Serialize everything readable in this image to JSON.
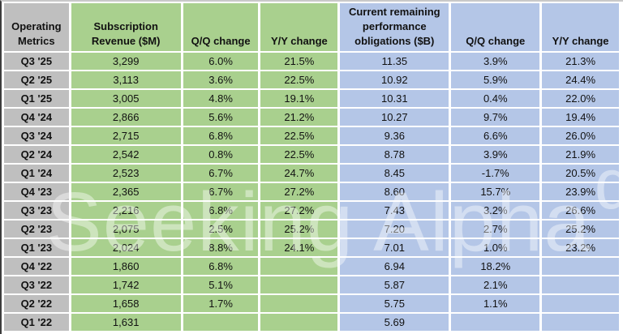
{
  "watermark": {
    "text": "Seeking Alpha",
    "alpha": "α"
  },
  "colors": {
    "gray": "#BFBFBF",
    "green": "#A9D08E",
    "blue": "#B4C6E7",
    "grid_white": "#FFFFFF",
    "text": "#111111"
  },
  "table": {
    "columns": [
      {
        "id": "operating-metrics",
        "group": "gray",
        "header_lines": [
          "Operating",
          "Metrics"
        ]
      },
      {
        "id": "subscription-revenue",
        "group": "green",
        "header_lines": [
          "Subscription",
          "Revenue ($M)"
        ]
      },
      {
        "id": "subscription-qq-change",
        "group": "green",
        "header_lines": [
          "Q/Q change"
        ]
      },
      {
        "id": "subscription-yy-change",
        "group": "green",
        "header_lines": [
          "Y/Y change"
        ]
      },
      {
        "id": "crpo",
        "group": "blue",
        "header_lines": [
          "Current remaining",
          "performance",
          "obligations ($B)"
        ]
      },
      {
        "id": "crpo-qq-change",
        "group": "blue",
        "header_lines": [
          "Q/Q change"
        ]
      },
      {
        "id": "crpo-yy-change",
        "group": "blue",
        "header_lines": [
          "Y/Y change"
        ]
      }
    ],
    "rows": [
      {
        "label": "Q3 '25",
        "cells": [
          "3,299",
          "6.0%",
          "21.5%",
          "11.35",
          "3.9%",
          "21.3%"
        ]
      },
      {
        "label": "Q2 '25",
        "cells": [
          "3,113",
          "3.6%",
          "22.5%",
          "10.92",
          "5.9%",
          "24.4%"
        ]
      },
      {
        "label": "Q1 '25",
        "cells": [
          "3,005",
          "4.8%",
          "19.1%",
          "10.31",
          "0.4%",
          "22.0%"
        ]
      },
      {
        "label": "Q4 '24",
        "cells": [
          "2,866",
          "5.6%",
          "21.2%",
          "10.27",
          "9.7%",
          "19.4%"
        ]
      },
      {
        "label": "Q3 '24",
        "cells": [
          "2,715",
          "6.8%",
          "22.5%",
          "9.36",
          "6.6%",
          "26.0%"
        ]
      },
      {
        "label": "Q2 '24",
        "cells": [
          "2,542",
          "0.8%",
          "22.5%",
          "8.78",
          "3.9%",
          "21.9%"
        ]
      },
      {
        "label": "Q1 '24",
        "cells": [
          "2,523",
          "6.7%",
          "24.7%",
          "8.45",
          "-1.7%",
          "20.5%"
        ]
      },
      {
        "label": "Q4 '23",
        "cells": [
          "2,365",
          "6.7%",
          "27.2%",
          "8.60",
          "15.7%",
          "23.9%"
        ]
      },
      {
        "label": "Q3 '23",
        "cells": [
          "2,216",
          "6.8%",
          "27.2%",
          "7.43",
          "3.2%",
          "26.6%"
        ]
      },
      {
        "label": "Q2 '23",
        "cells": [
          "2,075",
          "2.5%",
          "25.2%",
          "7.20",
          "2.7%",
          "25.2%"
        ]
      },
      {
        "label": "Q1 '23",
        "cells": [
          "2,024",
          "8.8%",
          "24.1%",
          "7.01",
          "1.0%",
          "23.2%"
        ]
      },
      {
        "label": "Q4 '22",
        "cells": [
          "1,860",
          "6.8%",
          "",
          "6.94",
          "18.2%",
          ""
        ]
      },
      {
        "label": "Q3 '22",
        "cells": [
          "1,742",
          "5.1%",
          "",
          "5.87",
          "2.1%",
          ""
        ]
      },
      {
        "label": "Q2 '22",
        "cells": [
          "1,658",
          "1.7%",
          "",
          "5.75",
          "1.1%",
          ""
        ]
      },
      {
        "label": "Q1 '22",
        "cells": [
          "1,631",
          "",
          "",
          "5.69",
          "",
          ""
        ]
      }
    ]
  },
  "chart_data": {
    "type": "table",
    "title": "Operating Metrics",
    "categories": [
      "Q3 '25",
      "Q2 '25",
      "Q1 '25",
      "Q4 '24",
      "Q3 '24",
      "Q2 '24",
      "Q1 '24",
      "Q4 '23",
      "Q3 '23",
      "Q2 '23",
      "Q1 '23",
      "Q4 '22",
      "Q3 '22",
      "Q2 '22",
      "Q1 '22"
    ],
    "series": [
      {
        "name": "Subscription Revenue ($M)",
        "values": [
          3299,
          3113,
          3005,
          2866,
          2715,
          2542,
          2523,
          2365,
          2216,
          2075,
          2024,
          1860,
          1742,
          1658,
          1631
        ]
      },
      {
        "name": "Subscription Revenue Q/Q change",
        "values": [
          "6.0%",
          "3.6%",
          "4.8%",
          "5.6%",
          "6.8%",
          "0.8%",
          "6.7%",
          "6.7%",
          "6.8%",
          "2.5%",
          "8.8%",
          "6.8%",
          "5.1%",
          "1.7%",
          null
        ]
      },
      {
        "name": "Subscription Revenue Y/Y change",
        "values": [
          "21.5%",
          "22.5%",
          "19.1%",
          "21.2%",
          "22.5%",
          "22.5%",
          "24.7%",
          "27.2%",
          "27.2%",
          "25.2%",
          "24.1%",
          null,
          null,
          null,
          null
        ]
      },
      {
        "name": "Current remaining performance obligations ($B)",
        "values": [
          11.35,
          10.92,
          10.31,
          10.27,
          9.36,
          8.78,
          8.45,
          8.6,
          7.43,
          7.2,
          7.01,
          6.94,
          5.87,
          5.75,
          5.69
        ]
      },
      {
        "name": "CRPO Q/Q change",
        "values": [
          "3.9%",
          "5.9%",
          "0.4%",
          "9.7%",
          "6.6%",
          "3.9%",
          "-1.7%",
          "15.7%",
          "3.2%",
          "2.7%",
          "1.0%",
          "18.2%",
          "2.1%",
          "1.1%",
          null
        ]
      },
      {
        "name": "CRPO Y/Y change",
        "values": [
          "21.3%",
          "24.4%",
          "22.0%",
          "19.4%",
          "26.0%",
          "21.9%",
          "20.5%",
          "23.9%",
          "26.6%",
          "25.2%",
          "23.2%",
          null,
          null,
          null,
          null
        ]
      }
    ],
    "legend_position": "none",
    "grid": true
  }
}
